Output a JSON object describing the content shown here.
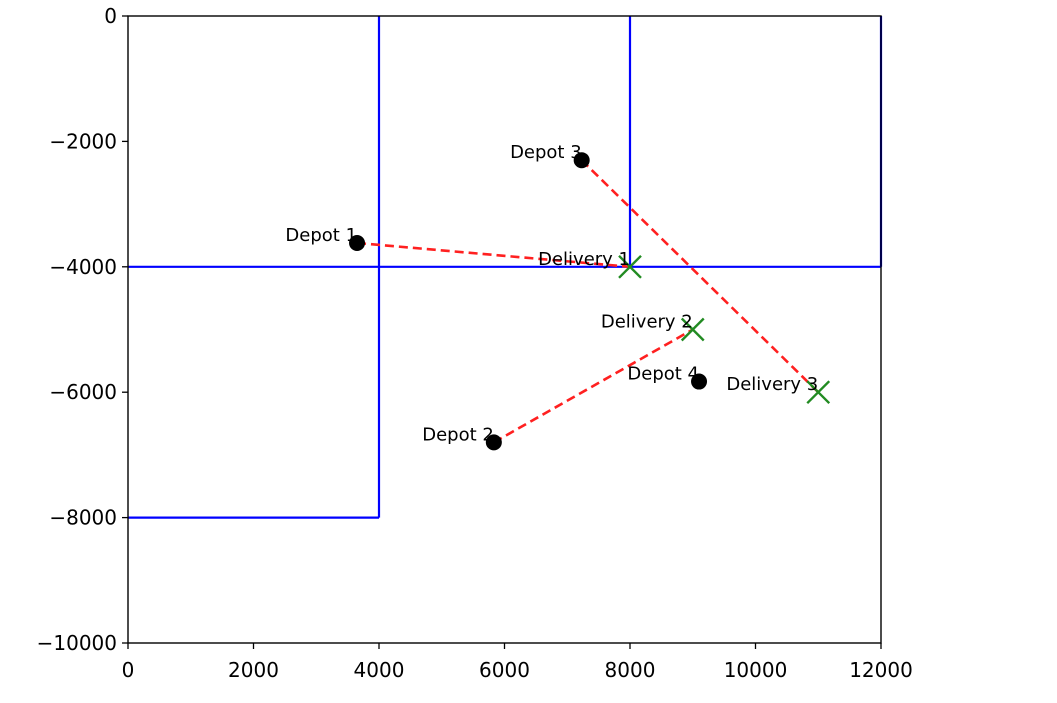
{
  "chart_data": {
    "type": "scatter",
    "title": "",
    "xlabel": "",
    "ylabel": "",
    "xlim": [
      0,
      12000
    ],
    "ylim": [
      -10000,
      0
    ],
    "x_ticks": [
      0,
      2000,
      4000,
      6000,
      8000,
      10000,
      12000
    ],
    "y_ticks": [
      0,
      -2000,
      -4000,
      -6000,
      -8000,
      -10000
    ],
    "x_tick_labels": [
      "0",
      "2000",
      "4000",
      "6000",
      "8000",
      "10000",
      "12000"
    ],
    "y_tick_labels": [
      "0",
      "−2000",
      "−4000",
      "−6000",
      "−8000",
      "−10000"
    ],
    "grid": false,
    "road_lines": [
      {
        "x": [
          4000,
          4000
        ],
        "y": [
          0,
          -8000
        ]
      },
      {
        "x": [
          0,
          4000
        ],
        "y": [
          -8000,
          -8000
        ]
      },
      {
        "x": [
          8000,
          8000
        ],
        "y": [
          0,
          -4000
        ]
      },
      {
        "x": [
          0,
          12000
        ],
        "y": [
          -4000,
          -4000
        ]
      },
      {
        "x": [
          12000,
          12000
        ],
        "y": [
          0,
          -4000
        ]
      }
    ],
    "depots": [
      {
        "label": "Depot 1",
        "x": 3650,
        "y": -3620
      },
      {
        "label": "Depot 2",
        "x": 5830,
        "y": -6800
      },
      {
        "label": "Depot 3",
        "x": 7230,
        "y": -2300
      },
      {
        "label": "Depot 4",
        "x": 9100,
        "y": -5830
      }
    ],
    "deliveries": [
      {
        "label": "Delivery 1",
        "x": 8000,
        "y": -4000
      },
      {
        "label": "Delivery 2",
        "x": 9000,
        "y": -5000
      },
      {
        "label": "Delivery 3",
        "x": 11000,
        "y": -6000
      }
    ],
    "routes": [
      {
        "from": [
          3650,
          -3620
        ],
        "to": [
          8000,
          -4000
        ]
      },
      {
        "from": [
          5830,
          -6800
        ],
        "to": [
          9000,
          -5000
        ]
      },
      {
        "from": [
          7230,
          -2300
        ],
        "to": [
          11000,
          -6000
        ]
      }
    ],
    "colors": {
      "road": "#0000ff",
      "route": "#ff2020",
      "depot": "#000000",
      "delivery": "#228b22"
    }
  }
}
